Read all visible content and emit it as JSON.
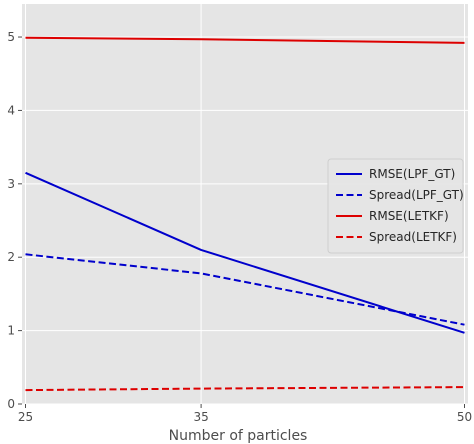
{
  "chart_data": {
    "type": "line",
    "title": "",
    "xlabel": "Number of particles",
    "ylabel": "",
    "x": [
      25,
      35,
      50
    ],
    "xticks": [
      "25",
      "35",
      "50"
    ],
    "yticks": [
      "0",
      "1",
      "2",
      "3",
      "4",
      "5"
    ],
    "xlim": [
      24.8,
      50.2
    ],
    "ylim": [
      0,
      5.45
    ],
    "grid": true,
    "legend_position": "right",
    "series": [
      {
        "name": "RMSE(LPF_GT)",
        "values": [
          3.15,
          2.1,
          0.97
        ],
        "color": "#0000cc",
        "dash": "solid"
      },
      {
        "name": "Spread(LPF_GT)",
        "values": [
          2.04,
          1.78,
          1.08
        ],
        "color": "#0000cc",
        "dash": "dashed"
      },
      {
        "name": "RMSE(LETKF)",
        "values": [
          4.99,
          4.97,
          4.92
        ],
        "color": "#dd0000",
        "dash": "solid"
      },
      {
        "name": "Spread(LETKF)",
        "values": [
          0.19,
          0.21,
          0.23
        ],
        "color": "#dd0000",
        "dash": "dashed"
      }
    ],
    "colors": {
      "plot_background": "#e5e5e5",
      "grid": "#ffffff",
      "legend_background": "#e5e5e5"
    }
  }
}
